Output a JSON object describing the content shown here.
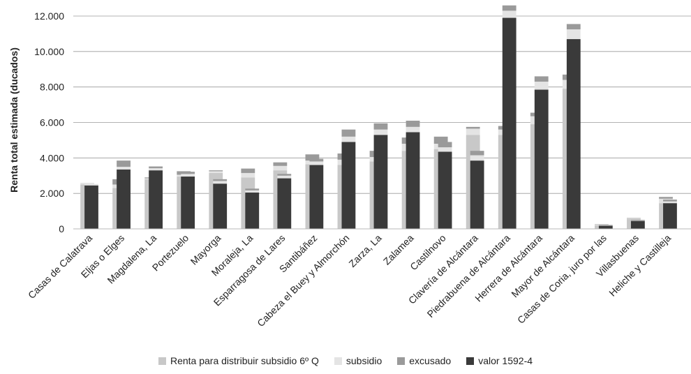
{
  "chart_data": {
    "type": "bar",
    "ylabel": "Renta total estimada (ducados)",
    "ylim": [
      0,
      12000
    ],
    "yticks": [
      "0",
      "2.000",
      "4.000",
      "6.000",
      "8.000",
      "10.000",
      "12.000"
    ],
    "grid": true,
    "legend_position": "bottom",
    "categories": [
      "Casas de Calatrava",
      "Eljas o Elges",
      "Magdalena, La",
      "Portezuelo",
      "Mayorga",
      "Moraleja, La",
      "Esparragosa de Lares",
      "Santibáñez",
      "Cabeza el Buey y Almorchón",
      "Zarza, La",
      "Zalamea",
      "Castilnovo",
      "Clavería de Alcántara",
      "Piedrabuena de Alcántara",
      "Herrera de Alcántara",
      "Mayor de Alcántara",
      "Casas de Coria, juro por las",
      "Villasbuenas",
      "Heliche y Castilleja"
    ],
    "series": [
      {
        "name": "Renta para distribuir subsidio 6º Q",
        "stack": "renta",
        "color": "#c8c8c8",
        "values": [
          2500,
          2300,
          2800,
          2950,
          3150,
          2900,
          3300,
          3650,
          3600,
          3800,
          4400,
          4500,
          5300,
          5300,
          5900,
          7900,
          200,
          550,
          1450
        ]
      },
      {
        "name": "subsidio",
        "stack": "renta",
        "color": "#e4e4e4",
        "values": [
          100,
          200,
          50,
          100,
          100,
          250,
          250,
          200,
          300,
          250,
          400,
          300,
          350,
          300,
          450,
          500,
          40,
          30,
          250
        ]
      },
      {
        "name": "excusado",
        "stack": "renta",
        "color": "#9a9a9a",
        "values": [
          0,
          300,
          50,
          200,
          50,
          250,
          200,
          350,
          350,
          350,
          350,
          400,
          100,
          200,
          200,
          300,
          20,
          30,
          100
        ]
      },
      {
        "name": "valor 1592-4",
        "stack": "valor",
        "color": "#3a3a3a",
        "values": [
          2450,
          3350,
          3300,
          2950,
          2550,
          2050,
          2850,
          3600,
          4900,
          5300,
          5450,
          4350,
          3850,
          11900,
          7850,
          10700,
          180,
          450,
          1450
        ]
      },
      {
        "name": "subsidio",
        "stack": "valor",
        "color": "#e4e4e4",
        "values": [
          80,
          150,
          120,
          150,
          150,
          120,
          150,
          200,
          300,
          300,
          300,
          250,
          300,
          400,
          450,
          550,
          30,
          30,
          100
        ]
      },
      {
        "name": "excusado",
        "stack": "valor",
        "color": "#9a9a9a",
        "values": [
          0,
          350,
          100,
          120,
          100,
          100,
          100,
          150,
          400,
          350,
          350,
          300,
          250,
          300,
          300,
          300,
          20,
          30,
          100
        ]
      }
    ],
    "legend": [
      {
        "label": "Renta para distribuir subsidio 6º Q",
        "color": "#c8c8c8"
      },
      {
        "label": "subsidio",
        "color": "#e4e4e4"
      },
      {
        "label": "excusado",
        "color": "#9a9a9a"
      },
      {
        "label": "valor 1592-4",
        "color": "#3a3a3a"
      }
    ]
  }
}
